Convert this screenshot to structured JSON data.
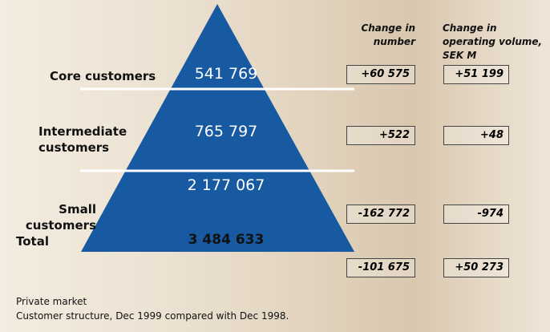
{
  "levels": [
    {
      "label": "Core customers",
      "count": "541 769"
    },
    {
      "label": "Intermediate customers",
      "count": "765 797"
    },
    {
      "label": "Small customers",
      "count": "2 177 067"
    }
  ],
  "total": {
    "label": "Total",
    "count": "3 484 633"
  },
  "columns": [
    "Change in number",
    "Change in operating volume, SEK M"
  ],
  "changes": [
    [
      "+60 575",
      "+51 199"
    ],
    [
      "+522",
      "+48"
    ],
    [
      "-162 772",
      "-974"
    ],
    [
      "-101 675",
      "+50 273"
    ]
  ],
  "footer": [
    "Private market",
    "Customer structure, Dec 1999 compared with Dec 1998."
  ]
}
